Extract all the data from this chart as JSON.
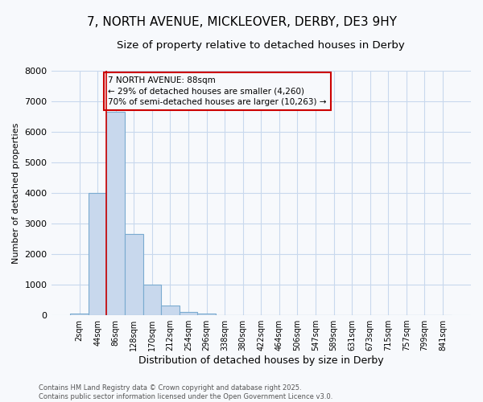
{
  "title_line1": "7, NORTH AVENUE, MICKLEOVER, DERBY, DE3 9HY",
  "title_line2": "Size of property relative to detached houses in Derby",
  "xlabel": "Distribution of detached houses by size in Derby",
  "ylabel": "Number of detached properties",
  "bar_labels": [
    "2sqm",
    "44sqm",
    "86sqm",
    "128sqm",
    "170sqm",
    "212sqm",
    "254sqm",
    "296sqm",
    "338sqm",
    "380sqm",
    "422sqm",
    "464sqm",
    "506sqm",
    "547sqm",
    "589sqm",
    "631sqm",
    "673sqm",
    "715sqm",
    "757sqm",
    "799sqm",
    "841sqm"
  ],
  "bar_values": [
    50,
    4000,
    6650,
    2650,
    1000,
    330,
    100,
    50,
    0,
    0,
    0,
    0,
    0,
    0,
    0,
    0,
    0,
    0,
    0,
    0,
    0
  ],
  "bar_color": "#c8d8ed",
  "bar_edge_color": "#7aabd0",
  "highlight_line_color": "#cc0000",
  "highlight_line_index": 2,
  "ylim": [
    0,
    8000
  ],
  "yticks": [
    0,
    1000,
    2000,
    3000,
    4000,
    5000,
    6000,
    7000,
    8000
  ],
  "annotation_text": "7 NORTH AVENUE: 88sqm\n← 29% of detached houses are smaller (4,260)\n70% of semi-detached houses are larger (10,263) →",
  "annotation_box_color": "#cc0000",
  "footer_line1": "Contains HM Land Registry data © Crown copyright and database right 2025.",
  "footer_line2": "Contains public sector information licensed under the Open Government Licence v3.0.",
  "background_color": "#f7f9fc",
  "grid_color": "#c8d8ed",
  "title_fontsize": 11,
  "subtitle_fontsize": 9.5
}
